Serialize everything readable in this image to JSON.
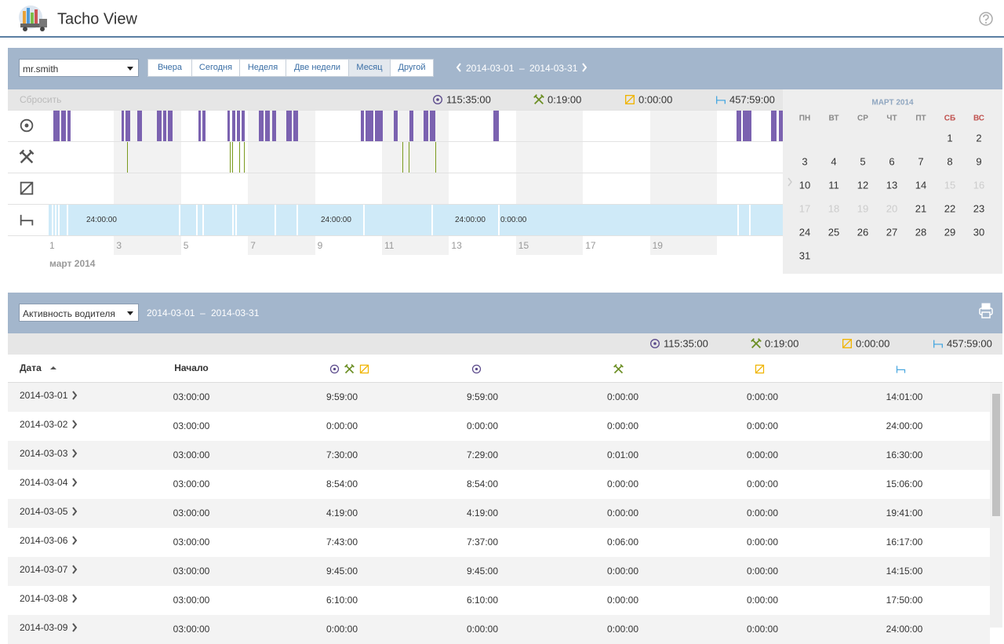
{
  "header": {
    "title": "Tacho View"
  },
  "toolbar": {
    "driver": "mr.smith",
    "periods": [
      "Вчера",
      "Сегодня",
      "Неделя",
      "Две недели",
      "Месяц",
      "Другой"
    ],
    "range": {
      "start": "2014-03-01",
      "separator": "–",
      "end": "2014-03-31"
    }
  },
  "timeline": {
    "reset": "Сбросить",
    "totals": [
      "115:35:00",
      "0:19:00",
      "0:00:00",
      "457:59:00"
    ],
    "axis_labels": [
      1,
      3,
      5,
      7,
      9,
      11,
      13,
      15,
      17,
      19
    ],
    "month": "март 2014",
    "rest_labels": [
      "24:00:00",
      "24:00:00",
      "24:00:00",
      "0:00:00"
    ]
  },
  "calendar": {
    "title": "МАРТ 2014",
    "weekdays": [
      "ПН",
      "ВТ",
      "СР",
      "ЧТ",
      "ПТ",
      "СБ",
      "ВС"
    ],
    "days": [
      1,
      2,
      3,
      4,
      5,
      6,
      7,
      8,
      9,
      10,
      11,
      12,
      13,
      14,
      15,
      16,
      17,
      18,
      19,
      20,
      21,
      22,
      23,
      24,
      25,
      26,
      27,
      28,
      29,
      30,
      31
    ],
    "disabled_days": [
      15,
      16,
      17,
      18,
      19,
      20
    ]
  },
  "report": {
    "type": "Активность водителя",
    "range": {
      "start": "2014-03-01",
      "separator": "–",
      "end": "2014-03-31"
    },
    "totals": [
      "115:35:00",
      "0:19:00",
      "0:00:00",
      "457:59:00"
    ],
    "columns": [
      "Дата",
      "Начало"
    ],
    "rows": [
      [
        "2014-03-01",
        "03:00:00",
        "9:59:00",
        "9:59:00",
        "0:00:00",
        "0:00:00",
        "14:01:00"
      ],
      [
        "2014-03-02",
        "03:00:00",
        "0:00:00",
        "0:00:00",
        "0:00:00",
        "0:00:00",
        "24:00:00"
      ],
      [
        "2014-03-03",
        "03:00:00",
        "7:30:00",
        "7:29:00",
        "0:01:00",
        "0:00:00",
        "16:30:00"
      ],
      [
        "2014-03-04",
        "03:00:00",
        "8:54:00",
        "8:54:00",
        "0:00:00",
        "0:00:00",
        "15:06:00"
      ],
      [
        "2014-03-05",
        "03:00:00",
        "4:19:00",
        "4:19:00",
        "0:00:00",
        "0:00:00",
        "19:41:00"
      ],
      [
        "2014-03-06",
        "03:00:00",
        "7:43:00",
        "7:37:00",
        "0:06:00",
        "0:00:00",
        "16:17:00"
      ],
      [
        "2014-03-07",
        "03:00:00",
        "9:45:00",
        "9:45:00",
        "0:00:00",
        "0:00:00",
        "14:15:00"
      ],
      [
        "2014-03-08",
        "03:00:00",
        "6:10:00",
        "6:10:00",
        "0:00:00",
        "0:00:00",
        "17:50:00"
      ],
      [
        "2014-03-09",
        "03:00:00",
        "0:00:00",
        "0:00:00",
        "0:00:00",
        "0:00:00",
        "24:00:00"
      ]
    ]
  }
}
